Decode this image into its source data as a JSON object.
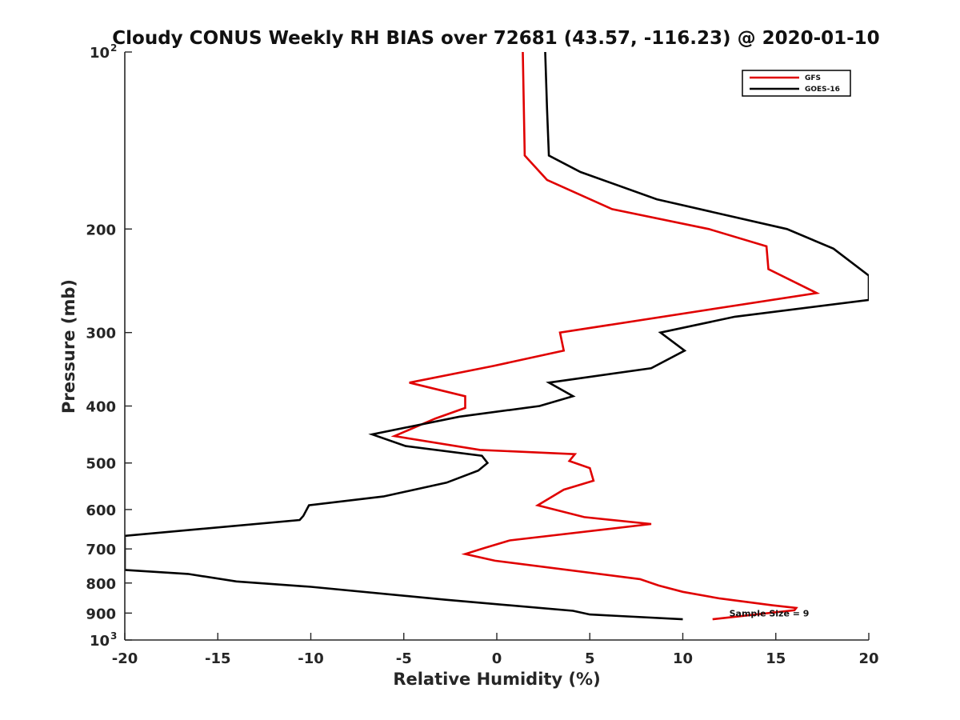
{
  "chart_data": {
    "type": "line",
    "title": "Cloudy CONUS Weekly RH BIAS over 72681 (43.57, -116.23) @ 2020-01-10",
    "xlabel": "Relative Humidity (%)",
    "ylabel": "Pressure (mb)",
    "xlim": [
      -20,
      20
    ],
    "ylim": [
      100,
      1000
    ],
    "yscale": "log",
    "y_reversed": true,
    "grid": false,
    "legend_position": "top-right",
    "x_ticks": [
      "-20",
      "-15",
      "-10",
      "-5",
      "0",
      "5",
      "10",
      "15",
      "20"
    ],
    "y_ticks": [
      {
        "value": 100,
        "label": "10",
        "exp": "2"
      },
      {
        "value": 200,
        "label": "200"
      },
      {
        "value": 300,
        "label": "300"
      },
      {
        "value": 400,
        "label": "400"
      },
      {
        "value": 500,
        "label": "500"
      },
      {
        "value": 600,
        "label": "600"
      },
      {
        "value": 700,
        "label": "700"
      },
      {
        "value": 800,
        "label": "800"
      },
      {
        "value": 900,
        "label": "900"
      },
      {
        "value": 1000,
        "label": "10",
        "exp": "3"
      }
    ],
    "series": [
      {
        "name": "GFS",
        "color": "#e00000",
        "points": [
          {
            "x": 1.4,
            "y": 100
          },
          {
            "x": 1.5,
            "y": 150
          },
          {
            "x": 2.7,
            "y": 165
          },
          {
            "x": 6.2,
            "y": 185
          },
          {
            "x": 11.4,
            "y": 200
          },
          {
            "x": 14.5,
            "y": 214
          },
          {
            "x": 14.6,
            "y": 234
          },
          {
            "x": 17.2,
            "y": 257
          },
          {
            "x": 3.4,
            "y": 300
          },
          {
            "x": 3.6,
            "y": 322
          },
          {
            "x": -0.2,
            "y": 342
          },
          {
            "x": -4.7,
            "y": 365
          },
          {
            "x": -1.7,
            "y": 385
          },
          {
            "x": -1.7,
            "y": 403
          },
          {
            "x": -3.3,
            "y": 420
          },
          {
            "x": -5.5,
            "y": 450
          },
          {
            "x": -0.9,
            "y": 475
          },
          {
            "x": 4.2,
            "y": 483
          },
          {
            "x": 3.9,
            "y": 496
          },
          {
            "x": 5.0,
            "y": 510
          },
          {
            "x": 5.2,
            "y": 536
          },
          {
            "x": 3.6,
            "y": 555
          },
          {
            "x": 2.2,
            "y": 590
          },
          {
            "x": 4.7,
            "y": 618
          },
          {
            "x": 8.3,
            "y": 635
          },
          {
            "x": 0.7,
            "y": 677
          },
          {
            "x": -0.7,
            "y": 698
          },
          {
            "x": -1.7,
            "y": 714
          },
          {
            "x": -0.1,
            "y": 733
          },
          {
            "x": 7.7,
            "y": 788
          },
          {
            "x": 8.7,
            "y": 808
          },
          {
            "x": 10.0,
            "y": 828
          },
          {
            "x": 12.0,
            "y": 850
          },
          {
            "x": 14.8,
            "y": 873
          },
          {
            "x": 16.1,
            "y": 882
          },
          {
            "x": 16.0,
            "y": 890
          },
          {
            "x": 11.6,
            "y": 922
          }
        ]
      },
      {
        "name": "GOES-16",
        "color": "#000000",
        "points": [
          {
            "x": 2.6,
            "y": 100
          },
          {
            "x": 2.7,
            "y": 125
          },
          {
            "x": 2.8,
            "y": 150
          },
          {
            "x": 4.5,
            "y": 160
          },
          {
            "x": 8.6,
            "y": 178
          },
          {
            "x": 15.6,
            "y": 200
          },
          {
            "x": 18.1,
            "y": 216
          },
          {
            "x": 20.0,
            "y": 240
          },
          {
            "x": 20.0,
            "y": 264
          },
          {
            "x": 12.8,
            "y": 282
          },
          {
            "x": 8.8,
            "y": 300
          },
          {
            "x": 10.1,
            "y": 322
          },
          {
            "x": 8.3,
            "y": 345
          },
          {
            "x": 2.8,
            "y": 365
          },
          {
            "x": 4.1,
            "y": 385
          },
          {
            "x": 2.3,
            "y": 400
          },
          {
            "x": -2.0,
            "y": 417
          },
          {
            "x": -6.7,
            "y": 447
          },
          {
            "x": -4.9,
            "y": 468
          },
          {
            "x": -0.8,
            "y": 486
          },
          {
            "x": -0.5,
            "y": 500
          },
          {
            "x": -1.0,
            "y": 515
          },
          {
            "x": -2.7,
            "y": 540
          },
          {
            "x": -6.1,
            "y": 570
          },
          {
            "x": -10.1,
            "y": 590
          },
          {
            "x": -10.4,
            "y": 615
          },
          {
            "x": -10.6,
            "y": 625
          },
          {
            "x": -20.0,
            "y": 665
          },
          {
            "x": -20.0,
            "y": 760
          },
          {
            "x": -16.6,
            "y": 772
          },
          {
            "x": -14.0,
            "y": 795
          },
          {
            "x": -10.0,
            "y": 812
          },
          {
            "x": -2.8,
            "y": 854
          },
          {
            "x": 4.1,
            "y": 892
          },
          {
            "x": 5.0,
            "y": 905
          },
          {
            "x": 10.0,
            "y": 922
          }
        ]
      }
    ],
    "annotations": [
      {
        "text": "Sample Size = 9",
        "x": 12.5,
        "y": 900
      }
    ]
  }
}
